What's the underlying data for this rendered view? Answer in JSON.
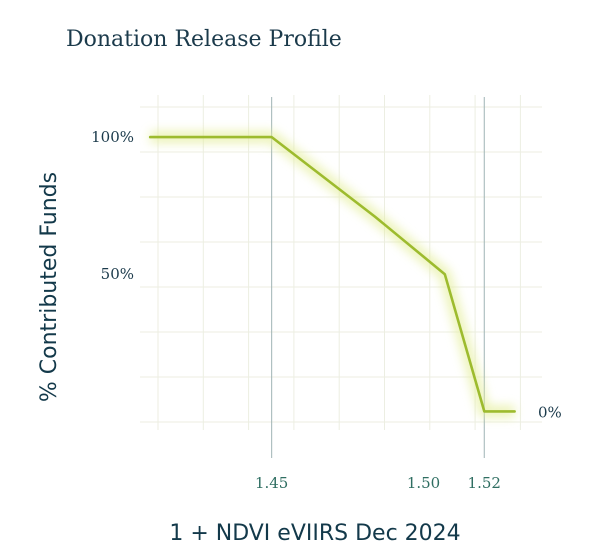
{
  "chart_data": {
    "type": "line",
    "title": "Donation Release Profile",
    "xlabel": "1 + NDVI eVIIRS Dec 2024",
    "ylabel": "% Contributed Funds",
    "xlim": [
      1.405,
      1.54
    ],
    "ylim": [
      -0.17,
      1.27
    ],
    "x_ticks": [
      1.45,
      1.5,
      1.52
    ],
    "x_tick_labels": [
      "1.45",
      "1.50",
      "1.52"
    ],
    "y_ticks": [
      0.5,
      1.0
    ],
    "y_tick_labels": [
      "50%",
      "100%"
    ],
    "end_label": "0%",
    "series": [
      {
        "x": [
          1.41,
          1.45,
          1.484,
          1.507,
          1.52,
          1.53
        ],
        "y": [
          1.0,
          1.0,
          0.71,
          0.5,
          0.0,
          0.0
        ]
      }
    ],
    "grid": true,
    "colors": {
      "line": "#9dbb2e",
      "glow": "#e4ee9a",
      "grid": "#eceee2",
      "threshold": "#9fb3b5",
      "text": "#1b3a4b"
    }
  }
}
